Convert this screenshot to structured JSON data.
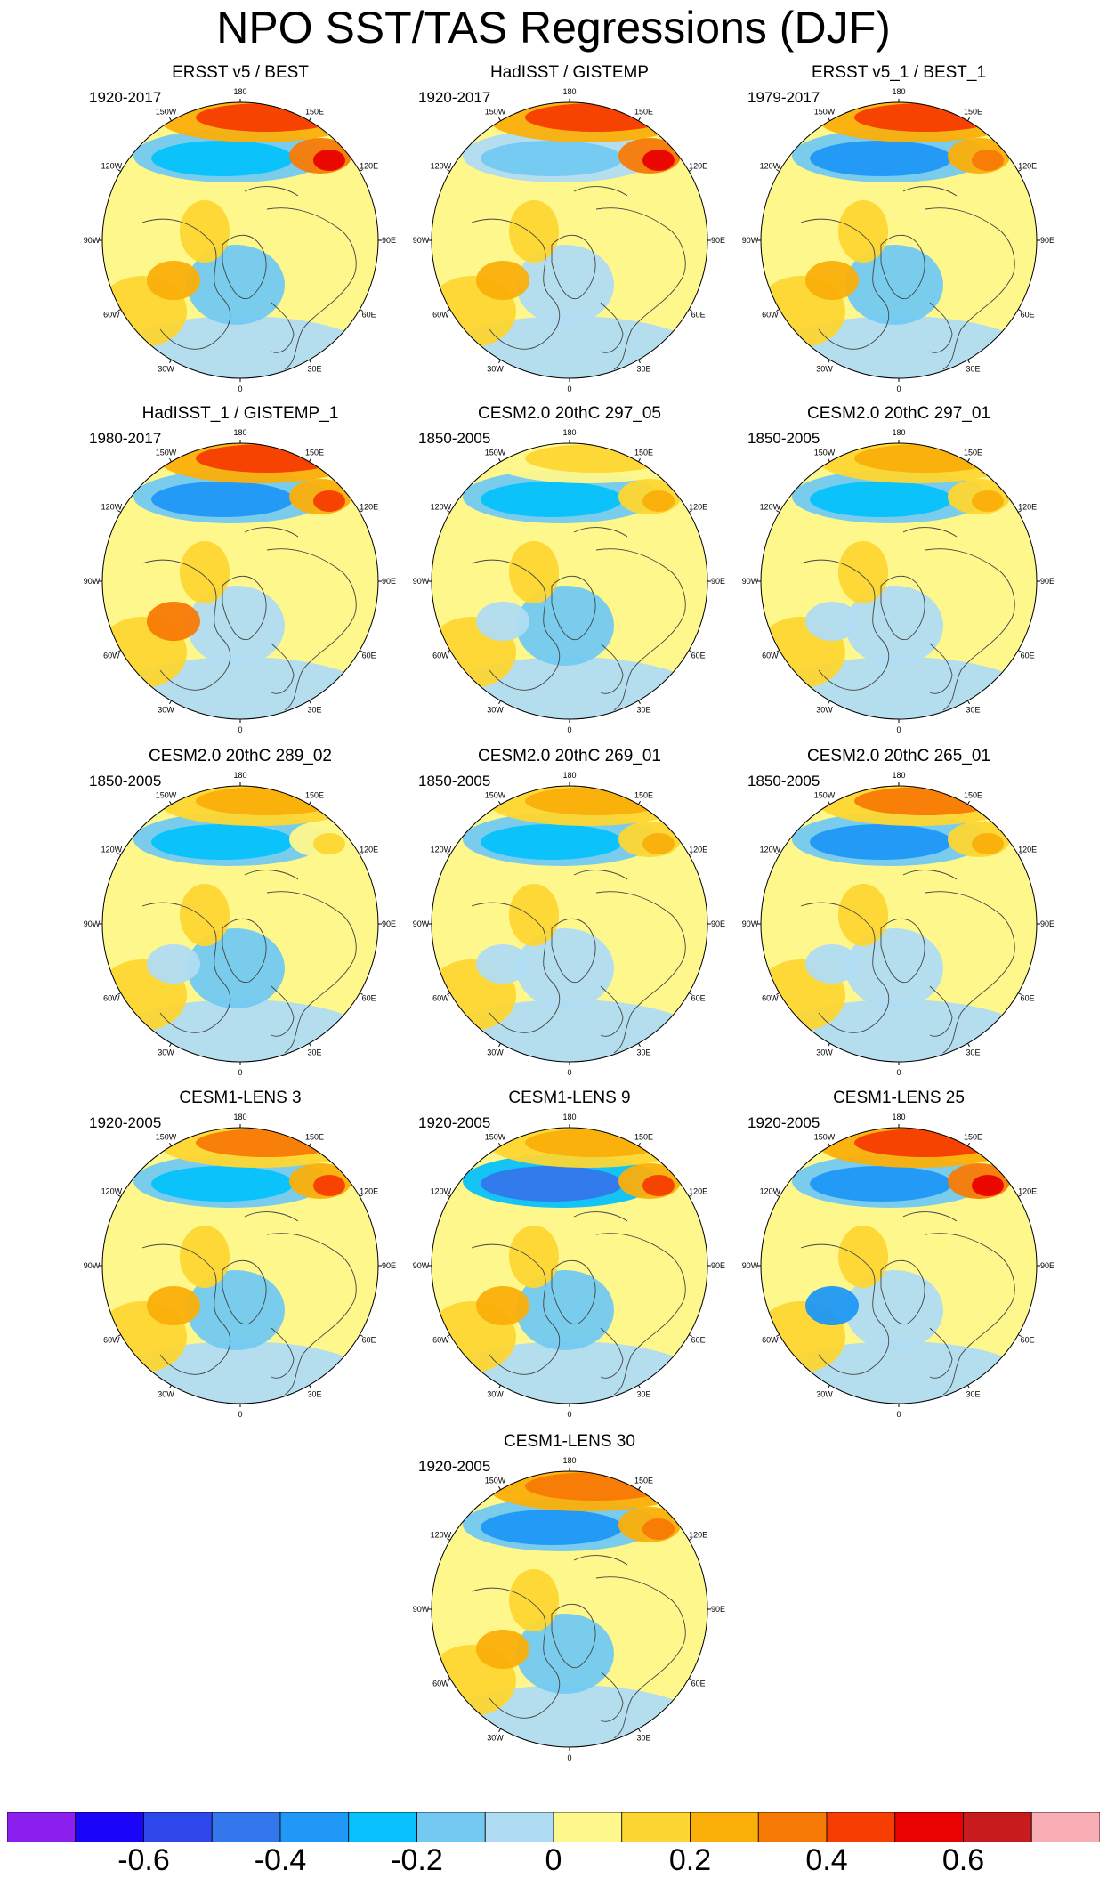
{
  "figure": {
    "title": "NPO SST/TAS Regressions (DJF)"
  },
  "map_labels": {
    "longitudes": [
      "180",
      "150E",
      "120E",
      "90E",
      "60E",
      "30E",
      "0",
      "30W",
      "60W",
      "90W",
      "120W",
      "150W"
    ]
  },
  "panels": [
    {
      "title": "ERSST v5 / BEST",
      "period": "1920-2017",
      "pattern": {
        "npo_pos": 0.42,
        "npo_neg": -0.3,
        "ne_asia": 0.5,
        "nw_atlantic": 0.2,
        "arctic": -0.15
      }
    },
    {
      "title": "HadISST / GISTEMP",
      "period": "1920-2017",
      "pattern": {
        "npo_pos": 0.4,
        "npo_neg": -0.18,
        "ne_asia": 0.55,
        "nw_atlantic": 0.2,
        "arctic": -0.05
      }
    },
    {
      "title": "ERSST v5_1 / BEST_1",
      "period": "1979-2017",
      "pattern": {
        "npo_pos": 0.45,
        "npo_neg": -0.35,
        "ne_asia": 0.35,
        "nw_atlantic": 0.2,
        "arctic": -0.15
      }
    },
    {
      "title": "HadISST_1 / GISTEMP_1",
      "period": "1980-2017",
      "pattern": {
        "npo_pos": 0.45,
        "npo_neg": -0.38,
        "ne_asia": 0.45,
        "nw_atlantic": 0.3,
        "arctic": -0.1
      }
    },
    {
      "title": "CESM2.0 20thC 297_05",
      "period": "1850-2005",
      "pattern": {
        "npo_pos": 0.15,
        "npo_neg": -0.25,
        "ne_asia": 0.2,
        "nw_atlantic": -0.1,
        "arctic": -0.15
      }
    },
    {
      "title": "CESM2.0 20thC 297_01",
      "period": "1850-2005",
      "pattern": {
        "npo_pos": 0.2,
        "npo_neg": -0.3,
        "ne_asia": 0.2,
        "nw_atlantic": -0.1,
        "arctic": -0.1
      }
    },
    {
      "title": "CESM2.0 20thC 289_02",
      "period": "1850-2005",
      "pattern": {
        "npo_pos": 0.25,
        "npo_neg": -0.3,
        "ne_asia": 0.1,
        "nw_atlantic": -0.1,
        "arctic": -0.12
      }
    },
    {
      "title": "CESM2.0 20thC 269_01",
      "period": "1850-2005",
      "pattern": {
        "npo_pos": 0.25,
        "npo_neg": -0.3,
        "ne_asia": 0.25,
        "nw_atlantic": -0.1,
        "arctic": -0.1
      }
    },
    {
      "title": "CESM2.0 20thC 265_01",
      "period": "1850-2005",
      "pattern": {
        "npo_pos": 0.3,
        "npo_neg": -0.38,
        "ne_asia": 0.2,
        "nw_atlantic": -0.1,
        "arctic": -0.1
      }
    },
    {
      "title": "CESM1-LENS 3",
      "period": "1920-2005",
      "pattern": {
        "npo_pos": 0.3,
        "npo_neg": -0.3,
        "ne_asia": 0.45,
        "nw_atlantic": 0.2,
        "arctic": -0.15
      }
    },
    {
      "title": "CESM1-LENS 9",
      "period": "1920-2005",
      "pattern": {
        "npo_pos": 0.2,
        "npo_neg": -0.45,
        "ne_asia": 0.4,
        "nw_atlantic": 0.2,
        "arctic": -0.15
      }
    },
    {
      "title": "CESM1-LENS 25",
      "period": "1920-2005",
      "pattern": {
        "npo_pos": 0.45,
        "npo_neg": -0.4,
        "ne_asia": 0.5,
        "nw_atlantic": -0.35,
        "arctic": -0.1
      }
    },
    {
      "title": "CESM1-LENS 30",
      "period": "1920-2005",
      "pattern": {
        "npo_pos": 0.35,
        "npo_neg": -0.35,
        "ne_asia": 0.35,
        "nw_atlantic": 0.25,
        "arctic": -0.15
      }
    }
  ],
  "colorbar": {
    "colors": [
      "#8b1fef",
      "#1b05f8",
      "#2e47ea",
      "#3477ec",
      "#1f98f7",
      "#06c1fb",
      "#73c9f2",
      "#b0dcf3",
      "#fef78c",
      "#fdd631",
      "#faaf09",
      "#f87a06",
      "#f63d02",
      "#e90201",
      "#c81b1d",
      "#f9aeb5"
    ],
    "labels": [
      "-0.6",
      "-0.4",
      "-0.2",
      "0",
      "0.2",
      "0.4",
      "0.6"
    ]
  }
}
